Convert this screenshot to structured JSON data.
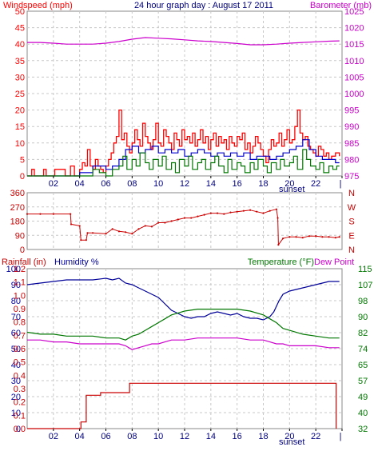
{
  "colors": {
    "wind": "#ff0000",
    "gust": "#ff0000",
    "windAvg": "#0000cc",
    "windLow": "#007700",
    "baro": "#cc00cc",
    "dir": "#cc0000",
    "rain": "#cc0000",
    "humidity": "#000099",
    "temp": "#007700",
    "dew": "#cc00cc",
    "grid": "#c8c8c8",
    "frame": "#888888"
  },
  "chart_data": [
    {
      "type": "line",
      "title": "24 hour graph day : August 17 2011",
      "ylabel_left": "Windspeed (mph)",
      "ylabel_right": "Barometer (mb)",
      "x_ticks": [
        "02",
        "04",
        "06",
        "08",
        "10",
        "12",
        "14",
        "16",
        "18",
        "20",
        "22",
        ""
      ],
      "xlim": [
        0,
        24
      ],
      "x_annotation": "sunset",
      "sunset_hour": 19.8,
      "ylim_left": [
        0,
        50
      ],
      "y_ticks_left": [
        "0",
        "5",
        "10",
        "15",
        "20",
        "25",
        "30",
        "35",
        "40",
        "45",
        "50"
      ],
      "ylim_right": [
        975,
        1025
      ],
      "y_ticks_right": [
        "975",
        "980",
        "985",
        "990",
        "995",
        "1000",
        "1005",
        "1010",
        "1015",
        "1020",
        "1025"
      ],
      "grid": true,
      "series": [
        {
          "name": "Windspeed",
          "axis": "left",
          "x": [
            0,
            0.3,
            0.35,
            0.5,
            0.55,
            1.2,
            1.25,
            1.4,
            1.45,
            2.0,
            2.1,
            2.8,
            2.9,
            3.2,
            3.3,
            3.5,
            3.6,
            4.0,
            4.2,
            4.4,
            4.6,
            4.8,
            5.0,
            5.2,
            5.4,
            5.6,
            5.8,
            6.0,
            6.2,
            6.4,
            6.6,
            6.8,
            7.0,
            7.2,
            7.4,
            7.6,
            7.8,
            8.0,
            8.2,
            8.4,
            8.6,
            8.8,
            9.0,
            9.2,
            9.4,
            9.6,
            9.8,
            10.0,
            10.2,
            10.4,
            10.6,
            10.8,
            11.0,
            11.2,
            11.4,
            11.6,
            11.8,
            12.0,
            12.2,
            12.4,
            12.6,
            12.8,
            13.0,
            13.2,
            13.4,
            13.6,
            13.8,
            14.0,
            14.2,
            14.4,
            14.6,
            14.8,
            15.0,
            15.2,
            15.4,
            15.6,
            15.8,
            16.0,
            16.2,
            16.4,
            16.6,
            16.8,
            17.0,
            17.2,
            17.4,
            17.6,
            17.8,
            18.0,
            18.2,
            18.4,
            18.6,
            18.8,
            19.0,
            19.2,
            19.4,
            19.6,
            19.8,
            20.0,
            20.2,
            20.4,
            20.6,
            20.8,
            21.0,
            21.2,
            21.4,
            21.6,
            21.8,
            22.0,
            22.2,
            22.4,
            22.6,
            22.8,
            23.0,
            23.2,
            23.5,
            23.8
          ],
          "values": [
            0,
            0,
            2,
            2,
            0,
            0,
            2,
            2,
            0,
            0,
            2,
            2,
            0,
            0,
            3,
            3,
            0,
            2,
            4,
            3,
            8,
            3,
            2,
            5,
            3,
            2,
            1,
            3,
            5,
            7,
            10,
            12,
            20,
            11,
            13,
            9,
            7,
            10,
            14,
            11,
            9,
            16,
            12,
            10,
            8,
            11,
            16,
            10,
            9,
            14,
            12,
            10,
            8,
            13,
            11,
            9,
            14,
            11,
            12,
            10,
            13,
            9,
            11,
            14,
            10,
            12,
            8,
            11,
            13,
            9,
            12,
            10,
            11,
            8,
            12,
            10,
            9,
            12,
            11,
            13,
            8,
            10,
            7,
            9,
            12,
            10,
            8,
            6,
            4,
            8,
            11,
            9,
            10,
            13,
            9,
            11,
            14,
            10,
            11,
            15,
            20,
            13,
            11,
            12,
            9,
            8,
            7,
            6,
            9,
            8,
            6,
            7,
            5,
            6,
            7,
            6
          ]
        },
        {
          "name": "Average",
          "axis": "left",
          "x": [
            0,
            3.5,
            4.0,
            4.5,
            5.0,
            5.5,
            6.0,
            6.5,
            7.0,
            7.5,
            8.0,
            8.5,
            9.0,
            9.5,
            10.0,
            10.5,
            11.0,
            11.5,
            12.0,
            12.5,
            13.0,
            13.5,
            14.0,
            14.5,
            15.0,
            15.5,
            16.0,
            16.5,
            17.0,
            17.5,
            18.0,
            18.5,
            19.0,
            19.5,
            20.0,
            20.5,
            21.0,
            21.5,
            22.0,
            22.5,
            23.0,
            23.5,
            23.8
          ],
          "values": [
            0,
            0,
            1,
            1,
            3,
            3,
            2,
            3,
            5,
            8,
            9,
            7,
            8,
            9,
            7,
            8,
            7,
            8,
            6,
            7,
            8,
            7,
            6,
            7,
            6,
            7,
            6,
            7,
            5,
            6,
            6,
            5,
            6,
            7,
            8,
            9,
            11,
            8,
            6,
            5,
            5,
            4,
            4
          ]
        },
        {
          "name": "Low",
          "axis": "left",
          "x": [
            0,
            3.5,
            4.0,
            4.5,
            5.0,
            5.5,
            6.0,
            6.5,
            7.0,
            7.3,
            7.6,
            8.0,
            8.3,
            8.6,
            9.0,
            9.3,
            9.6,
            10.0,
            10.3,
            10.6,
            11.0,
            11.3,
            11.6,
            12.0,
            12.3,
            12.6,
            13.0,
            13.3,
            13.6,
            14.0,
            14.3,
            14.6,
            15.0,
            15.3,
            15.6,
            16.0,
            16.3,
            16.6,
            17.0,
            17.3,
            17.6,
            18.0,
            18.3,
            18.6,
            19.0,
            19.3,
            19.6,
            20.0,
            20.3,
            20.6,
            21.0,
            21.3,
            21.6,
            22.0,
            22.3,
            22.6,
            23.0,
            23.3,
            23.6,
            23.8
          ],
          "values": [
            0,
            0,
            0,
            0,
            2,
            1,
            0,
            2,
            3,
            6,
            2,
            5,
            3,
            7,
            4,
            2,
            5,
            3,
            6,
            2,
            4,
            1,
            5,
            3,
            6,
            2,
            4,
            5,
            2,
            4,
            6,
            3,
            1,
            5,
            2,
            4,
            3,
            1,
            4,
            2,
            5,
            3,
            1,
            4,
            2,
            5,
            3,
            4,
            6,
            2,
            8,
            5,
            3,
            2,
            4,
            1,
            3,
            2,
            3,
            3
          ]
        },
        {
          "name": "Barometer",
          "axis": "right",
          "x": [
            0,
            1,
            2,
            3,
            4,
            5,
            6,
            7,
            8,
            9,
            10,
            11,
            12,
            13,
            14,
            15,
            16,
            17,
            18,
            19,
            20,
            21,
            22,
            23,
            23.8
          ],
          "values": [
            1015.5,
            1015.5,
            1015.3,
            1015.0,
            1015.0,
            1015.0,
            1015.3,
            1015.8,
            1016.5,
            1017.0,
            1016.8,
            1016.6,
            1016.3,
            1016.0,
            1015.8,
            1015.5,
            1015.2,
            1014.8,
            1014.8,
            1015.0,
            1015.3,
            1015.5,
            1015.7,
            1015.9,
            1016.0
          ]
        }
      ]
    },
    {
      "type": "scatter",
      "ylabel_right": [
        "N",
        "W",
        "S",
        "E",
        "N"
      ],
      "y_ticks_left": [
        "0",
        "90",
        "180",
        "270",
        "360"
      ],
      "ylim": [
        0,
        360
      ],
      "xlim": [
        0,
        24
      ],
      "grid": true,
      "series": [
        {
          "name": "Wind direction",
          "x": [
            0,
            1,
            2,
            3.3,
            3.35,
            4.0,
            4.1,
            4.5,
            4.6,
            5,
            6,
            6.5,
            7,
            7.5,
            8,
            8.5,
            9,
            9.5,
            10,
            10.5,
            11,
            11.5,
            12,
            12.5,
            13,
            13.5,
            14,
            14.5,
            15,
            15.5,
            16,
            16.5,
            17,
            17.5,
            18,
            18.5,
            19,
            19.1,
            19.15,
            19.5,
            20,
            20.5,
            21,
            21.5,
            22,
            22.5,
            23,
            23.5,
            23.8
          ],
          "values": [
            225,
            225,
            225,
            225,
            160,
            150,
            60,
            60,
            105,
            105,
            100,
            130,
            115,
            110,
            100,
            130,
            150,
            145,
            170,
            170,
            180,
            190,
            200,
            200,
            210,
            220,
            230,
            230,
            225,
            235,
            240,
            245,
            250,
            240,
            230,
            245,
            255,
            200,
            30,
            70,
            80,
            80,
            75,
            85,
            85,
            80,
            80,
            75,
            80
          ]
        }
      ]
    },
    {
      "type": "line",
      "ylabel_left_1": "Rainfall (in)",
      "ylabel_left_2": "Humidity %",
      "ylabel_right": "Temperature (°F)",
      "ylabel_right_2": "Dew Point",
      "x_ticks": [
        "02",
        "04",
        "06",
        "08",
        "10",
        "12",
        "14",
        "16",
        "18",
        "20",
        "22",
        ""
      ],
      "xlim": [
        0,
        24
      ],
      "x_annotation": "sunset",
      "sunset_hour": 19.8,
      "ylim_humidity": [
        0,
        100
      ],
      "y_ticks_humidity": [
        "0",
        "10",
        "20",
        "30",
        "40",
        "50",
        "60",
        "70",
        "80",
        "90",
        "100"
      ],
      "ylim_rain": [
        0,
        1.2
      ],
      "y_ticks_rain": [
        "0.0",
        "0.1",
        "0.2",
        "0.3",
        "0.4",
        "0.5",
        "0.6",
        "0.7",
        "0.8",
        "0.9",
        "1.0",
        "1.1",
        "1.2"
      ],
      "ylim_temp": [
        32,
        115
      ],
      "y_ticks_temp": [
        "32",
        "40",
        "49",
        "57",
        "65",
        "74",
        "82",
        "90",
        "98",
        "107",
        "115"
      ],
      "grid": true,
      "series": [
        {
          "name": "Humidity",
          "axis": "humidity",
          "x": [
            0,
            1,
            2,
            3,
            4,
            5,
            6,
            6.5,
            7,
            7.5,
            8,
            8.5,
            9,
            9.5,
            10,
            10.5,
            11,
            11.5,
            12,
            12.5,
            13,
            13.5,
            14,
            14.5,
            15,
            15.5,
            16,
            16.5,
            17,
            17.5,
            18,
            18.5,
            18.8,
            19.2,
            19.5,
            20,
            20.5,
            21,
            21.5,
            22,
            22.5,
            23,
            23.5,
            23.8
          ],
          "values": [
            90,
            91,
            92,
            93,
            93,
            93,
            94,
            93,
            94,
            91,
            90,
            88,
            86,
            84,
            82,
            78,
            74,
            72,
            70,
            69,
            70,
            70,
            72,
            73,
            72,
            71,
            72,
            70,
            69,
            69,
            68,
            70,
            73,
            80,
            84,
            86,
            87,
            88,
            89,
            90,
            91,
            92,
            92,
            92
          ]
        },
        {
          "name": "Temperature",
          "axis": "temp",
          "x": [
            0,
            1,
            2,
            3,
            4,
            5,
            6,
            7,
            7.5,
            8,
            8.5,
            9,
            9.5,
            10,
            10.5,
            11,
            11.5,
            12,
            13,
            14,
            15,
            16,
            17,
            18,
            18.5,
            19,
            19.5,
            20,
            21,
            22,
            23,
            23.8
          ],
          "values": [
            82,
            81,
            81,
            80,
            80,
            80,
            79,
            79,
            78,
            80,
            81,
            83,
            85,
            87,
            89,
            91,
            92,
            93,
            94,
            94,
            94,
            94,
            93,
            91,
            89,
            87,
            84,
            83,
            81,
            80,
            79,
            79
          ]
        },
        {
          "name": "Dew Point",
          "axis": "temp",
          "x": [
            0,
            1,
            2,
            3,
            4,
            5,
            6,
            7,
            7.5,
            8,
            8.5,
            9,
            9.5,
            10,
            10.5,
            11,
            11.5,
            12,
            13,
            14,
            15,
            16,
            17,
            18,
            18.5,
            19,
            19.5,
            20,
            21,
            22,
            23,
            23.8
          ],
          "values": [
            78,
            78,
            77,
            77,
            76,
            76,
            76,
            76,
            75,
            73,
            74,
            75,
            76,
            76,
            77,
            78,
            78,
            78,
            79,
            79,
            79,
            79,
            78,
            78,
            77,
            76,
            76,
            75,
            75,
            75,
            74,
            74
          ]
        },
        {
          "name": "Rainfall",
          "axis": "rain",
          "x": [
            0,
            2,
            4.0,
            4.1,
            4.5,
            5,
            5.5,
            5.6,
            5.7,
            6,
            7,
            7.7,
            7.8,
            8,
            10,
            12,
            14,
            16,
            18,
            20,
            22,
            23.5,
            23.55
          ],
          "values": [
            0,
            0,
            0,
            0.05,
            0.25,
            0.25,
            0.25,
            0.27,
            0.27,
            0.27,
            0.27,
            0.27,
            0.34,
            0.34,
            0.34,
            0.34,
            0.34,
            0.34,
            0.34,
            0.34,
            0.34,
            0.34,
            0
          ]
        }
      ]
    }
  ]
}
